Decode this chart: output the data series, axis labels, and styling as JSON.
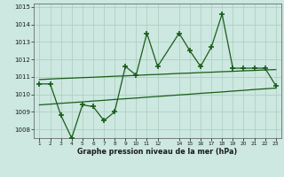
{
  "x": [
    1,
    2,
    3,
    4,
    5,
    6,
    7,
    8,
    9,
    10,
    11,
    12,
    14,
    15,
    16,
    17,
    18,
    19,
    20,
    21,
    22,
    23
  ],
  "y_main": [
    1010.6,
    1010.6,
    1008.8,
    1007.5,
    1009.4,
    1009.3,
    1008.5,
    1009.0,
    1011.6,
    1011.1,
    1013.5,
    1011.6,
    1013.5,
    1012.5,
    1011.6,
    1012.7,
    1014.6,
    1011.5,
    1011.5,
    1011.5,
    1011.5,
    1010.5
  ],
  "y_upper": [
    1010.85,
    1010.88,
    1010.91,
    1010.93,
    1010.96,
    1010.98,
    1011.01,
    1011.04,
    1011.06,
    1011.09,
    1011.12,
    1011.14,
    1011.2,
    1011.22,
    1011.25,
    1011.27,
    1011.3,
    1011.32,
    1011.35,
    1011.37,
    1011.4,
    1011.42
  ],
  "y_lower": [
    1009.4,
    1009.44,
    1009.49,
    1009.53,
    1009.57,
    1009.62,
    1009.66,
    1009.71,
    1009.75,
    1009.79,
    1009.84,
    1009.88,
    1009.97,
    1010.01,
    1010.06,
    1010.1,
    1010.14,
    1010.19,
    1010.23,
    1010.28,
    1010.32,
    1010.36
  ],
  "ylim": [
    1007.5,
    1015.2
  ],
  "yticks": [
    1008,
    1009,
    1010,
    1011,
    1012,
    1013,
    1014,
    1015
  ],
  "xtick_positions": [
    1,
    2,
    3,
    4,
    5,
    6,
    7,
    8,
    9,
    10,
    11,
    12,
    14,
    15,
    16,
    17,
    18,
    19,
    20,
    21,
    22,
    23
  ],
  "xtick_labels": [
    "1",
    "2",
    "3",
    "4",
    "5",
    "6",
    "7",
    "8",
    "9",
    "10",
    "11",
    "12",
    "14",
    "15",
    "16",
    "17",
    "18",
    "19",
    "20",
    "21",
    "22",
    "23"
  ],
  "xlabel": "Graphe pression niveau de la mer (hPa)",
  "line_color": "#1a5c1a",
  "bg_color": "#cce8e0",
  "grid_color": "#aaccbb",
  "marker": "+",
  "marker_size": 4
}
